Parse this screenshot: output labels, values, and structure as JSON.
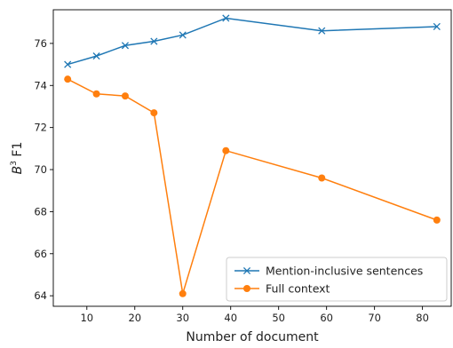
{
  "chart_data": {
    "type": "line",
    "xlabel": "Number of document",
    "ylabel_base": "B",
    "ylabel_sup": "3",
    "ylabel_rest": " F1",
    "xlim": [
      3,
      86
    ],
    "ylim": [
      63.5,
      77.6
    ],
    "xticks": [
      10,
      20,
      30,
      40,
      50,
      60,
      70,
      80
    ],
    "yticks": [
      64,
      66,
      68,
      70,
      72,
      74,
      76
    ],
    "grid": false,
    "legend_position": "lower-right",
    "series": [
      {
        "name": "Mention-inclusive sentences",
        "color": "#1f77b4",
        "marker": "x",
        "x": [
          6,
          12,
          18,
          24,
          30,
          39,
          59,
          83
        ],
        "y": [
          75.0,
          75.4,
          75.9,
          76.1,
          76.4,
          77.2,
          76.6,
          76.8
        ]
      },
      {
        "name": "Full context",
        "color": "#ff7f0e",
        "marker": "o",
        "x": [
          6,
          12,
          18,
          24,
          30,
          39,
          59,
          83
        ],
        "y": [
          74.3,
          73.6,
          73.5,
          72.7,
          64.1,
          70.9,
          69.6,
          67.6
        ]
      }
    ]
  }
}
